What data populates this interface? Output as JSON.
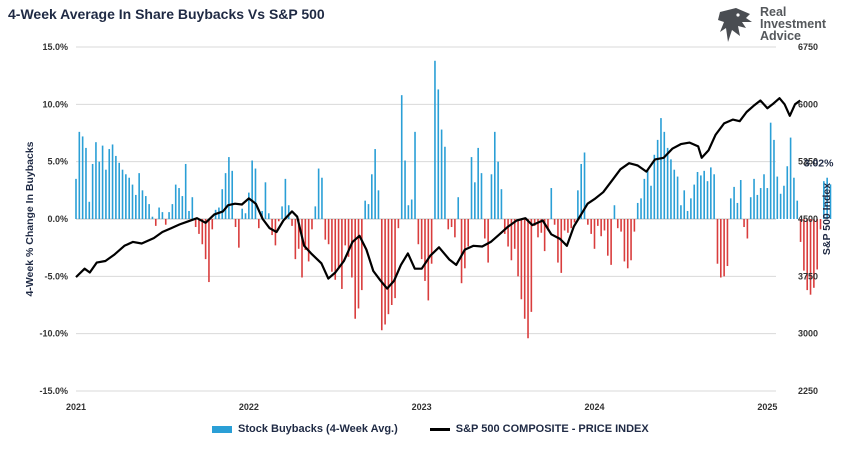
{
  "title": "4-Week Average In Share Buybacks Vs S&P 500",
  "brand": {
    "line1": "Real",
    "line2": "Investment",
    "line3": "Advice"
  },
  "colors": {
    "positive_bar": "#2a9fd6",
    "negative_bar": "#d93d3d",
    "line": "#000000",
    "grid": "#d9d9d9"
  },
  "chart_data": {
    "type": "bar+line",
    "xlabel": "",
    "x_ticks": [
      "2021",
      "2022",
      "2023",
      "2024",
      "2025"
    ],
    "y_left": {
      "label": "4-Week % Change In Buybacks",
      "min": -15,
      "max": 15,
      "ticks": [
        "-15.0%",
        "-10.0%",
        "-5.0%",
        "0.0%",
        "5.0%",
        "10.0%",
        "15.0%"
      ]
    },
    "y_right": {
      "label": "S&P 500 Index",
      "min": 2250,
      "max": 6750,
      "ticks": [
        "2250",
        "3000",
        "3750",
        "4500",
        "5250",
        "6000",
        "6750"
      ]
    },
    "last_value_label": "3.02%",
    "series": [
      {
        "name": "Stock Buybacks (4-Week Avg.)",
        "type": "bar",
        "axis": "left",
        "x_start": 2021.0,
        "x_step": 0.01923,
        "values": [
          3.5,
          7.6,
          7.2,
          6.2,
          1.5,
          4.8,
          6.7,
          5.0,
          6.4,
          4.3,
          6.1,
          6.5,
          5.5,
          4.9,
          4.3,
          3.9,
          3.6,
          3.0,
          2.1,
          4.0,
          2.5,
          2.0,
          1.3,
          0.2,
          -0.6,
          1.0,
          0.6,
          -0.5,
          0.6,
          1.3,
          3.0,
          2.7,
          2.0,
          4.8,
          0.7,
          1.9,
          -0.7,
          -1.3,
          -2.2,
          -3.5,
          -5.5,
          -0.9,
          0.8,
          1.0,
          2.6,
          4.0,
          5.4,
          4.2,
          -0.7,
          -2.5,
          0.9,
          0.5,
          2.3,
          5.1,
          4.4,
          -0.8,
          0.7,
          3.2,
          0.5,
          -1.4,
          -2.3,
          -0.2,
          1.1,
          3.5,
          1.2,
          -0.6,
          -3.5,
          -2.6,
          -5.1,
          -2.7,
          -3.7,
          -0.9,
          1.1,
          4.4,
          3.6,
          -1.8,
          -2.2,
          -4.6,
          -5.3,
          -4.3,
          -6.1,
          -2.3,
          -3.3,
          -5.1,
          -8.7,
          -7.8,
          -6.2,
          1.6,
          1.3,
          3.9,
          6.1,
          2.5,
          -9.7,
          -9.2,
          -8.3,
          -7.5,
          -6.9,
          -0.8,
          10.8,
          5.1,
          1.2,
          1.7,
          7.6,
          -2.2,
          -3.5,
          -5.4,
          -7.1,
          -3.9,
          13.8,
          11.3,
          7.8,
          6.3,
          -0.9,
          -0.7,
          -1.6,
          1.9,
          -5.6,
          -4.3,
          -2.4,
          5.4,
          3.2,
          6.2,
          4.0,
          -1.7,
          -3.8,
          3.9,
          7.6,
          5.0,
          2.6,
          -1.3,
          -2.4,
          -3.6,
          -2.6,
          -5.0,
          -7.0,
          -8.7,
          -10.4,
          -8.1,
          -0.6,
          -1.6,
          -1.2,
          -2.8,
          -1.0,
          2.7,
          -0.5,
          -3.8,
          -4.7,
          -1.0,
          -1.2,
          -0.8,
          -0.3,
          2.5,
          4.8,
          5.8,
          -0.5,
          -1.3,
          -2.6,
          -0.6,
          -1.5,
          -1.0,
          -3.2,
          -4.0,
          1.2,
          -0.8,
          -1.1,
          -3.7,
          -4.3,
          -3.6,
          -1.1,
          1.4,
          1.8,
          3.5,
          4.3,
          2.9,
          5.6,
          6.9,
          8.8,
          7.6,
          6.2,
          5.2,
          4.3,
          3.7,
          1.2,
          2.5,
          0.7,
          1.8,
          3.0,
          4.1,
          3.8,
          4.2,
          3.3,
          4.5,
          3.9,
          -3.9,
          -5.1,
          -5.0,
          -4.1,
          1.8,
          2.8,
          1.4,
          3.4,
          -0.7,
          -1.7,
          1.9,
          3.5,
          2.1,
          2.7,
          3.9,
          2.7,
          8.4,
          6.9,
          3.7,
          2.2,
          2.9,
          4.6,
          7.1,
          3.6,
          1.6,
          -2.0,
          -4.5,
          -6.2,
          -6.6,
          -6.0,
          -4.4,
          -0.9,
          3.3,
          3.6,
          3.02
        ]
      },
      {
        "name": "S&P 500 COMPOSITE - PRICE INDEX",
        "type": "line",
        "axis": "right",
        "points": [
          [
            2021.0,
            3740
          ],
          [
            2021.05,
            3850
          ],
          [
            2021.08,
            3800
          ],
          [
            2021.12,
            3930
          ],
          [
            2021.17,
            3950
          ],
          [
            2021.22,
            4030
          ],
          [
            2021.28,
            4150
          ],
          [
            2021.33,
            4200
          ],
          [
            2021.38,
            4180
          ],
          [
            2021.45,
            4250
          ],
          [
            2021.5,
            4330
          ],
          [
            2021.55,
            4380
          ],
          [
            2021.6,
            4430
          ],
          [
            2021.65,
            4470
          ],
          [
            2021.7,
            4510
          ],
          [
            2021.75,
            4450
          ],
          [
            2021.8,
            4560
          ],
          [
            2021.85,
            4600
          ],
          [
            2021.88,
            4680
          ],
          [
            2021.92,
            4700
          ],
          [
            2021.96,
            4690
          ],
          [
            2022.0,
            4770
          ],
          [
            2022.04,
            4700
          ],
          [
            2022.08,
            4500
          ],
          [
            2022.12,
            4380
          ],
          [
            2022.16,
            4330
          ],
          [
            2022.2,
            4480
          ],
          [
            2022.25,
            4600
          ],
          [
            2022.28,
            4530
          ],
          [
            2022.32,
            4150
          ],
          [
            2022.36,
            4050
          ],
          [
            2022.42,
            3920
          ],
          [
            2022.46,
            3720
          ],
          [
            2022.5,
            3800
          ],
          [
            2022.55,
            3950
          ],
          [
            2022.6,
            4200
          ],
          [
            2022.64,
            4280
          ],
          [
            2022.68,
            4100
          ],
          [
            2022.72,
            3820
          ],
          [
            2022.76,
            3700
          ],
          [
            2022.8,
            3590
          ],
          [
            2022.84,
            3690
          ],
          [
            2022.88,
            3900
          ],
          [
            2022.92,
            4050
          ],
          [
            2022.96,
            3850
          ],
          [
            2023.0,
            3850
          ],
          [
            2023.05,
            4020
          ],
          [
            2023.1,
            4130
          ],
          [
            2023.16,
            3970
          ],
          [
            2023.2,
            3900
          ],
          [
            2023.25,
            4100
          ],
          [
            2023.3,
            4150
          ],
          [
            2023.35,
            4140
          ],
          [
            2023.4,
            4200
          ],
          [
            2023.45,
            4300
          ],
          [
            2023.5,
            4400
          ],
          [
            2023.55,
            4480
          ],
          [
            2023.6,
            4510
          ],
          [
            2023.64,
            4420
          ],
          [
            2023.7,
            4480
          ],
          [
            2023.75,
            4300
          ],
          [
            2023.8,
            4240
          ],
          [
            2023.84,
            4150
          ],
          [
            2023.88,
            4400
          ],
          [
            2023.92,
            4550
          ],
          [
            2023.96,
            4700
          ],
          [
            2024.0,
            4760
          ],
          [
            2024.05,
            4850
          ],
          [
            2024.1,
            5000
          ],
          [
            2024.15,
            5150
          ],
          [
            2024.2,
            5230
          ],
          [
            2024.25,
            5200
          ],
          [
            2024.3,
            5120
          ],
          [
            2024.35,
            5280
          ],
          [
            2024.4,
            5300
          ],
          [
            2024.45,
            5420
          ],
          [
            2024.5,
            5480
          ],
          [
            2024.55,
            5500
          ],
          [
            2024.6,
            5450
          ],
          [
            2024.62,
            5300
          ],
          [
            2024.66,
            5400
          ],
          [
            2024.7,
            5600
          ],
          [
            2024.75,
            5750
          ],
          [
            2024.8,
            5800
          ],
          [
            2024.84,
            5780
          ],
          [
            2024.88,
            5900
          ],
          [
            2024.92,
            5980
          ],
          [
            2024.96,
            6050
          ],
          [
            2025.0,
            5950
          ],
          [
            2025.03,
            6000
          ],
          [
            2025.07,
            6080
          ],
          [
            2025.1,
            6000
          ],
          [
            2025.13,
            5850
          ],
          [
            2025.16,
            6000
          ],
          [
            2025.19,
            6050
          ]
        ]
      }
    ]
  }
}
